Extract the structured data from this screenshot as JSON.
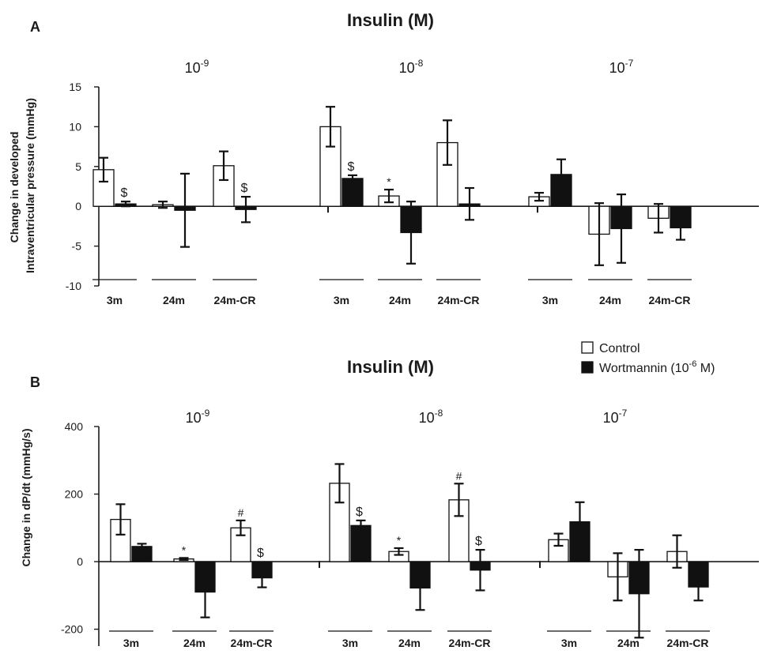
{
  "chart_data": [
    {
      "type": "bar",
      "panel_label": "A",
      "title": "Insulin (M)",
      "ylabel_line1": "Change in developed",
      "ylabel_line2": "Intraventricular pressure (mmHg)",
      "ylim": [
        -10,
        15
      ],
      "yticks": [
        15,
        10,
        5,
        0,
        -5,
        -10
      ],
      "ytick_labels": [
        "15",
        "10",
        "5",
        "0",
        "-5",
        "-10"
      ],
      "dose_groups": [
        {
          "dose_base": "10",
          "dose_exp": "-9",
          "groups": [
            {
              "label": "3m",
              "control": 4.6,
              "control_err": 1.5,
              "wort": 0.3,
              "wort_err": 0.3,
              "control_annot": "",
              "wort_annot": "$"
            },
            {
              "label": "24m",
              "control": 0.2,
              "control_err": 0.4,
              "wort": -0.5,
              "wort_err": 4.6,
              "control_annot": "",
              "wort_annot": ""
            },
            {
              "label": "24m-CR",
              "control": 5.1,
              "control_err": 1.8,
              "wort": -0.4,
              "wort_err": 1.6,
              "control_annot": "",
              "wort_annot": "$"
            }
          ]
        },
        {
          "dose_base": "10",
          "dose_exp": "-8",
          "groups": [
            {
              "label": "3m",
              "control": 10.0,
              "control_err": 2.5,
              "wort": 3.5,
              "wort_err": 0.4,
              "control_annot": "",
              "wort_annot": "$"
            },
            {
              "label": "24m",
              "control": 1.3,
              "control_err": 0.8,
              "wort": -3.3,
              "wort_err": 3.9,
              "control_annot": "*",
              "wort_annot": ""
            },
            {
              "label": "24m-CR",
              "control": 8.0,
              "control_err": 2.8,
              "wort": 0.3,
              "wort_err": 2.0,
              "control_annot": "",
              "wort_annot": ""
            }
          ]
        },
        {
          "dose_base": "10",
          "dose_exp": "-7",
          "groups": [
            {
              "label": "3m",
              "control": 1.2,
              "control_err": 0.5,
              "wort": 4.0,
              "wort_err": 1.9,
              "control_annot": "",
              "wort_annot": ""
            },
            {
              "label": "24m",
              "control": -3.5,
              "control_err": 3.9,
              "wort": -2.8,
              "wort_err": 4.3,
              "control_annot": "",
              "wort_annot": ""
            },
            {
              "label": "24m-CR",
              "control": -1.5,
              "control_err": 1.8,
              "wort": -2.7,
              "wort_err": 1.5,
              "control_annot": "",
              "wort_annot": ""
            }
          ]
        }
      ]
    },
    {
      "type": "bar",
      "panel_label": "B",
      "title": "Insulin (M)",
      "ylabel_line1": "Change in dP/dt (mmHg/s)",
      "ylim": [
        -250,
        400
      ],
      "yticks": [
        400,
        200,
        0,
        -200
      ],
      "ytick_labels": [
        "400",
        "200",
        "0",
        "-200"
      ],
      "dose_groups": [
        {
          "dose_base": "10",
          "dose_exp": "-9",
          "groups": [
            {
              "label": "3m",
              "control": 125,
              "control_err": 45,
              "wort": 45,
              "wort_err": 8,
              "control_annot": "",
              "wort_annot": ""
            },
            {
              "label": "24m",
              "control": 8,
              "control_err": 3,
              "wort": -90,
              "wort_err": 75,
              "control_annot": "*",
              "wort_annot": ""
            },
            {
              "label": "24m-CR",
              "control": 100,
              "control_err": 22,
              "wort": -48,
              "wort_err": 28,
              "control_annot": "#",
              "wort_annot": "$"
            }
          ]
        },
        {
          "dose_base": "10",
          "dose_exp": "-8",
          "groups": [
            {
              "label": "3m",
              "control": 232,
              "control_err": 57,
              "wort": 107,
              "wort_err": 15,
              "control_annot": "",
              "wort_annot": "$"
            },
            {
              "label": "24m",
              "control": 30,
              "control_err": 10,
              "wort": -78,
              "wort_err": 65,
              "control_annot": "*",
              "wort_annot": ""
            },
            {
              "label": "24m-CR",
              "control": 183,
              "control_err": 48,
              "wort": -25,
              "wort_err": 60,
              "control_annot": "#",
              "wort_annot": "$"
            }
          ]
        },
        {
          "dose_base": "10",
          "dose_exp": "-7",
          "groups": [
            {
              "label": "3m",
              "control": 65,
              "control_err": 18,
              "wort": 118,
              "wort_err": 58,
              "control_annot": "",
              "wort_annot": ""
            },
            {
              "label": "24m",
              "control": -45,
              "control_err": 70,
              "wort": -95,
              "wort_err": 130,
              "control_annot": "",
              "wort_annot": ""
            },
            {
              "label": "24m-CR",
              "control": 30,
              "control_err": 48,
              "wort": -75,
              "wort_err": 40,
              "control_annot": "",
              "wort_annot": ""
            }
          ]
        }
      ]
    }
  ],
  "legend": {
    "control_label": "Control",
    "wort_label_prefix": "Wortmannin (10",
    "wort_label_exp": "-6",
    "wort_label_suffix": " M)",
    "placement": "right, between panels"
  },
  "colors": {
    "control_fill": "#ffffff",
    "wort_fill": "#111111",
    "axis": "#1a1a1a"
  }
}
